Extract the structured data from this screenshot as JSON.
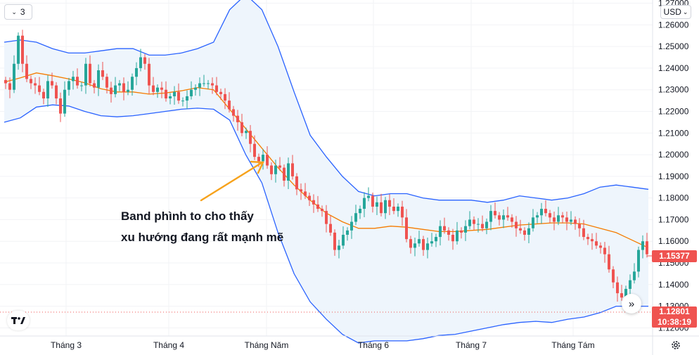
{
  "toolbar": {
    "interval": "3",
    "currency": "USD"
  },
  "price_tags": {
    "current": "1.15377",
    "last_price": "1.12801",
    "countdown": "10:38:19"
  },
  "annotation": {
    "line1": "Band phình to cho thấy",
    "line2": "xu hướng đang rất mạnh mẽ",
    "color": "#f7a21b"
  },
  "colors": {
    "up": "#26a69a",
    "down": "#ef5350",
    "band": "#2962ff",
    "fill": "#eef5fc",
    "middle": "#f57c00"
  },
  "chart_data": {
    "type": "candlestick",
    "indicator": "Bollinger Bands",
    "yaxis": {
      "ticks": [
        "1.27000",
        "1.26000",
        "1.25000",
        "1.24000",
        "1.23000",
        "1.22000",
        "1.21000",
        "1.20000",
        "1.19000",
        "1.18000",
        "1.17000",
        "1.16000",
        "1.15000",
        "1.14000",
        "1.13000",
        "1.12000"
      ],
      "range": [
        1.1185,
        1.2705
      ]
    },
    "xaxis": {
      "labels": [
        "Tháng 3",
        "Tháng 4",
        "Tháng Năm",
        "Tháng 6",
        "Tháng 7",
        "Tháng Tám"
      ]
    },
    "series": [
      {
        "name": "price",
        "values": [
          1.233,
          1.23,
          1.242,
          1.255,
          1.242,
          1.235,
          1.233,
          1.232,
          1.229,
          1.226,
          1.234,
          1.232,
          1.226,
          1.219,
          1.23,
          1.234,
          1.236,
          1.232,
          1.232,
          1.242,
          1.233,
          1.231,
          1.239,
          1.236,
          1.231,
          1.228,
          1.232,
          1.233,
          1.229,
          1.23,
          1.236,
          1.24,
          1.245,
          1.242,
          1.232,
          1.229,
          1.231,
          1.23,
          1.226,
          1.227,
          1.229,
          1.225,
          1.225,
          1.227,
          1.23,
          1.231,
          1.233,
          1.233,
          1.233,
          1.232,
          1.229,
          1.228,
          1.225,
          1.221,
          1.218,
          1.215,
          1.21,
          1.211,
          1.205,
          1.199,
          1.197,
          1.2,
          1.195,
          1.191,
          1.195,
          1.194,
          1.188,
          1.196,
          1.19,
          1.184,
          1.183,
          1.181,
          1.179,
          1.177,
          1.175,
          1.174,
          1.168,
          1.164,
          1.156,
          1.158,
          1.163,
          1.165,
          1.169,
          1.173,
          1.175,
          1.18,
          1.181,
          1.176,
          1.178,
          1.173,
          1.179,
          1.176,
          1.174,
          1.176,
          1.171,
          1.161,
          1.157,
          1.159,
          1.161,
          1.156,
          1.159,
          1.16,
          1.162,
          1.167,
          1.165,
          1.163,
          1.16,
          1.165,
          1.164,
          1.167,
          1.17,
          1.168,
          1.168,
          1.166,
          1.169,
          1.174,
          1.172,
          1.17,
          1.172,
          1.171,
          1.169,
          1.166,
          1.165,
          1.163,
          1.166,
          1.171,
          1.172,
          1.175,
          1.173,
          1.171,
          1.169,
          1.172,
          1.171,
          1.169,
          1.17,
          1.168,
          1.166,
          1.162,
          1.161,
          1.16,
          1.158,
          1.157,
          1.154,
          1.147,
          1.141,
          1.136,
          1.134,
          1.138,
          1.142,
          1.146,
          1.156,
          1.16,
          1.154
        ]
      },
      {
        "name": "upper band",
        "values": [
          1.252,
          1.253,
          1.252,
          1.249,
          1.247,
          1.247,
          1.248,
          1.249,
          1.249,
          1.246,
          1.246,
          1.247,
          1.249,
          1.252,
          1.267,
          1.274,
          1.267,
          1.25,
          1.229,
          1.209,
          1.199,
          1.19,
          1.183,
          1.181,
          1.182,
          1.182,
          1.18,
          1.179,
          1.179,
          1.179,
          1.178,
          1.179,
          1.181,
          1.18,
          1.179,
          1.18,
          1.182,
          1.185,
          1.186,
          1.185,
          1.184
        ]
      },
      {
        "name": "middle band",
        "values": [
          1.2335,
          1.2355,
          1.2378,
          1.2365,
          1.235,
          1.2332,
          1.2305,
          1.229,
          1.229,
          1.228,
          1.2285,
          1.2295,
          1.231,
          1.23,
          1.221,
          1.212,
          1.203,
          1.194,
          1.186,
          1.179,
          1.173,
          1.169,
          1.166,
          1.166,
          1.167,
          1.1665,
          1.1655,
          1.1645,
          1.1645,
          1.165,
          1.1655,
          1.1665,
          1.1675,
          1.168,
          1.1685,
          1.1685,
          1.168,
          1.166,
          1.164,
          1.1605,
          1.157
        ]
      },
      {
        "name": "lower band",
        "values": [
          1.215,
          1.217,
          1.222,
          1.223,
          1.2225,
          1.22,
          1.218,
          1.2175,
          1.218,
          1.219,
          1.22,
          1.221,
          1.2215,
          1.221,
          1.216,
          1.2,
          1.187,
          1.164,
          1.145,
          1.132,
          1.124,
          1.117,
          1.113,
          1.114,
          1.114,
          1.114,
          1.115,
          1.1165,
          1.117,
          1.1185,
          1.12,
          1.1215,
          1.1225,
          1.123,
          1.1225,
          1.124,
          1.125,
          1.127,
          1.13,
          1.13,
          1.13
        ]
      }
    ]
  }
}
